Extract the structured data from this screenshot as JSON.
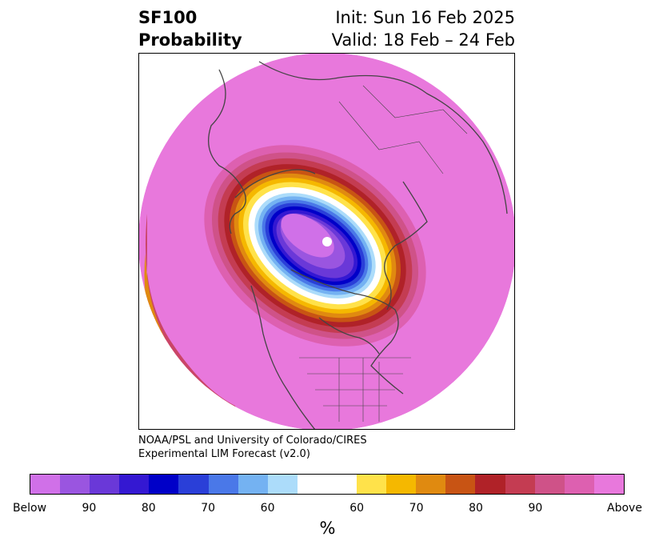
{
  "header": {
    "variable": "SF100",
    "subtitle": "Probability",
    "init": "Init: Sun 16 Feb 2025",
    "valid": "Valid: 18 Feb – 24 Feb"
  },
  "credit": {
    "line1": "NOAA/PSL and University of Colorado/CIRES",
    "line2": "Experimental LIM Forecast (v2.0)"
  },
  "colorbar": {
    "unit": "%",
    "colors": [
      "#d070e8",
      "#9a55e0",
      "#6a38d8",
      "#3418d2",
      "#0000c8",
      "#2a3fd8",
      "#4a78e8",
      "#74b2f2",
      "#acdcfa",
      "#ffffff",
      "#ffe24a",
      "#f5b800",
      "#e08a10",
      "#c85414",
      "#b02228",
      "#c43c52",
      "#cf5288",
      "#dd60b0",
      "#e878dc"
    ],
    "ticks": [
      "Below",
      "90",
      "80",
      "70",
      "60",
      "60",
      "70",
      "80",
      "90",
      "Above"
    ]
  },
  "map": {
    "projection": "north-polar-stereographic",
    "background_fill": "#e878dc",
    "coastline_color": "#444444"
  }
}
